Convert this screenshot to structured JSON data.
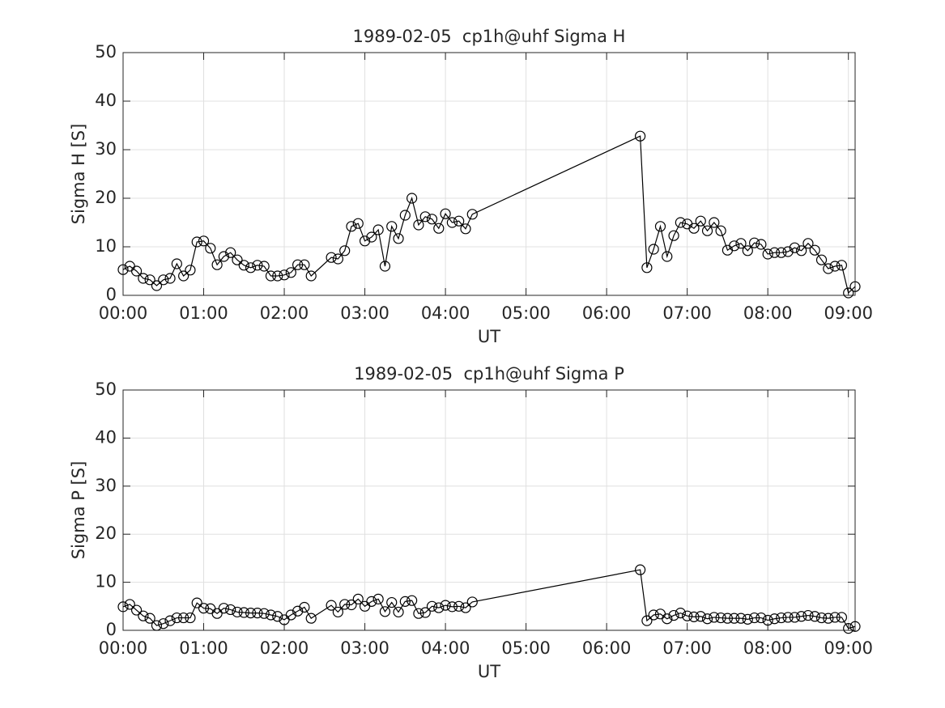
{
  "chart_data": [
    {
      "type": "line",
      "title": "1989-02-05  cp1h@uhf Sigma H",
      "xlabel": "UT",
      "ylabel": "Sigma H [S]",
      "x": [
        "00:00",
        "00:05",
        "00:10",
        "00:15",
        "00:20",
        "00:25",
        "00:30",
        "00:35",
        "00:40",
        "00:45",
        "00:50",
        "00:55",
        "01:00",
        "01:05",
        "01:10",
        "01:15",
        "01:20",
        "01:25",
        "01:30",
        "01:35",
        "01:40",
        "01:45",
        "01:50",
        "01:55",
        "02:00",
        "02:05",
        "02:10",
        "02:15",
        "02:20",
        "02:35",
        "02:40",
        "02:45",
        "02:50",
        "02:55",
        "03:00",
        "03:05",
        "03:10",
        "03:15",
        "03:20",
        "03:25",
        "03:30",
        "03:35",
        "03:40",
        "03:45",
        "03:50",
        "03:55",
        "04:00",
        "04:05",
        "04:10",
        "04:15",
        "04:20",
        "06:25",
        "06:30",
        "06:35",
        "06:40",
        "06:45",
        "06:50",
        "06:55",
        "07:00",
        "07:05",
        "07:10",
        "07:15",
        "07:20",
        "07:25",
        "07:30",
        "07:35",
        "07:40",
        "07:45",
        "07:50",
        "07:55",
        "08:00",
        "08:05",
        "08:10",
        "08:15",
        "08:20",
        "08:25",
        "08:30",
        "08:35",
        "08:40",
        "08:45",
        "08:50",
        "08:55",
        "09:00",
        "09:05"
      ],
      "values": [
        5.3,
        6.0,
        5.0,
        3.5,
        3.2,
        2.0,
        3.2,
        3.5,
        6.5,
        4.0,
        5.2,
        11.0,
        11.2,
        9.7,
        6.3,
        8.0,
        8.8,
        7.3,
        6.2,
        5.7,
        6.2,
        6.0,
        4.0,
        4.0,
        4.2,
        4.7,
        6.3,
        6.3,
        4.0,
        7.8,
        7.5,
        9.2,
        14.2,
        14.8,
        11.2,
        12.0,
        13.5,
        6.0,
        14.2,
        11.7,
        16.5,
        20.0,
        14.5,
        16.2,
        15.7,
        13.8,
        16.8,
        15.0,
        15.3,
        13.7,
        16.7,
        32.8,
        5.7,
        9.5,
        14.2,
        8.0,
        12.3,
        15.0,
        14.7,
        13.8,
        15.3,
        13.3,
        15.0,
        13.3,
        9.3,
        10.2,
        10.7,
        9.2,
        10.8,
        10.5,
        8.5,
        8.8,
        8.8,
        9.0,
        9.8,
        9.2,
        10.7,
        9.3,
        7.3,
        5.5,
        6.0,
        6.2,
        0.5,
        1.8
      ],
      "color": "#000000",
      "xlim": [
        "00:00",
        "09:05"
      ],
      "xticks": [
        "00:00",
        "01:00",
        "02:00",
        "03:00",
        "04:00",
        "05:00",
        "06:00",
        "07:00",
        "08:00",
        "09:00"
      ],
      "ylim": [
        0,
        50
      ],
      "yticks": [
        0,
        10,
        20,
        30,
        40,
        50
      ],
      "grid": true
    },
    {
      "type": "line",
      "title": "1989-02-05  cp1h@uhf Sigma P",
      "xlabel": "UT",
      "ylabel": "Sigma P [S]",
      "x": [
        "00:00",
        "00:05",
        "00:10",
        "00:15",
        "00:20",
        "00:25",
        "00:30",
        "00:35",
        "00:40",
        "00:45",
        "00:50",
        "00:55",
        "01:00",
        "01:05",
        "01:10",
        "01:15",
        "01:20",
        "01:25",
        "01:30",
        "01:35",
        "01:40",
        "01:45",
        "01:50",
        "01:55",
        "02:00",
        "02:05",
        "02:10",
        "02:15",
        "02:20",
        "02:35",
        "02:40",
        "02:45",
        "02:50",
        "02:55",
        "03:00",
        "03:05",
        "03:10",
        "03:15",
        "03:20",
        "03:25",
        "03:30",
        "03:35",
        "03:40",
        "03:45",
        "03:50",
        "03:55",
        "04:00",
        "04:05",
        "04:10",
        "04:15",
        "04:20",
        "06:25",
        "06:30",
        "06:35",
        "06:40",
        "06:45",
        "06:50",
        "06:55",
        "07:00",
        "07:05",
        "07:10",
        "07:15",
        "07:20",
        "07:25",
        "07:30",
        "07:35",
        "07:40",
        "07:45",
        "07:50",
        "07:55",
        "08:00",
        "08:05",
        "08:10",
        "08:15",
        "08:20",
        "08:25",
        "08:30",
        "08:35",
        "08:40",
        "08:45",
        "08:50",
        "08:55",
        "09:00",
        "09:05"
      ],
      "values": [
        4.9,
        5.4,
        4.2,
        3.0,
        2.5,
        1.0,
        1.4,
        2.0,
        2.6,
        2.6,
        2.6,
        5.7,
        4.6,
        4.5,
        3.5,
        4.6,
        4.3,
        3.8,
        3.7,
        3.6,
        3.6,
        3.5,
        3.2,
        2.9,
        2.2,
        3.2,
        4.0,
        4.8,
        2.5,
        5.2,
        3.8,
        5.4,
        5.3,
        6.5,
        5.0,
        6.0,
        6.5,
        3.9,
        5.8,
        3.8,
        6.0,
        6.2,
        3.5,
        3.7,
        5.0,
        4.7,
        5.2,
        4.9,
        5.0,
        4.7,
        5.9,
        12.6,
        2.0,
        3.2,
        3.4,
        2.4,
        3.1,
        3.6,
        3.0,
        2.8,
        2.9,
        2.4,
        2.7,
        2.6,
        2.5,
        2.5,
        2.5,
        2.3,
        2.6,
        2.6,
        2.1,
        2.4,
        2.6,
        2.7,
        2.7,
        2.9,
        3.1,
        2.9,
        2.6,
        2.5,
        2.7,
        2.7,
        0.4,
        0.8
      ],
      "color": "#000000",
      "xlim": [
        "00:00",
        "09:05"
      ],
      "xticks": [
        "00:00",
        "01:00",
        "02:00",
        "03:00",
        "04:00",
        "05:00",
        "06:00",
        "07:00",
        "08:00",
        "09:00"
      ],
      "ylim": [
        0,
        50
      ],
      "yticks": [
        0,
        10,
        20,
        30,
        40,
        50
      ],
      "grid": true
    }
  ]
}
